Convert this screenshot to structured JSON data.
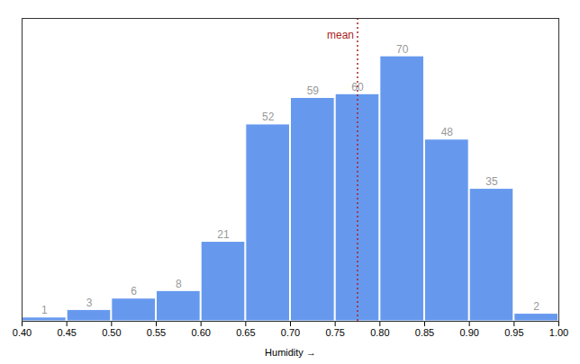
{
  "chart_data": {
    "type": "histogram",
    "xlabel": "Humidity",
    "bins": [
      0.4,
      0.45,
      0.5,
      0.55,
      0.6,
      0.65,
      0.7,
      0.75,
      0.8,
      0.85,
      0.9,
      0.95,
      1.0
    ],
    "values": [
      1,
      3,
      6,
      8,
      21,
      52,
      59,
      60,
      70,
      48,
      35,
      2
    ],
    "color": "#6699ee",
    "data_labels": true,
    "xlim": [
      0.4,
      1.0
    ],
    "xticks": [
      {
        "value": 0.4,
        "label": "0.40"
      },
      0.45,
      {
        "value": 0.5,
        "label": "0.50"
      },
      0.55,
      {
        "value": 0.6,
        "label": "0.60"
      },
      0.65,
      {
        "value": 0.7,
        "label": "0.70"
      },
      0.75,
      {
        "value": 0.8,
        "label": "0.80"
      },
      0.85,
      {
        "value": 0.9,
        "label": "0.90"
      },
      0.95,
      {
        "value": 1.0,
        "label": "1.00"
      }
    ],
    "ylim": [
      0,
      80
    ],
    "yticks": [],
    "tick_labels": "x",
    "grid": false,
    "annotations": [
      {
        "text": "mean",
        "x": 0.775,
        "color": "#aa2222"
      }
    ]
  }
}
